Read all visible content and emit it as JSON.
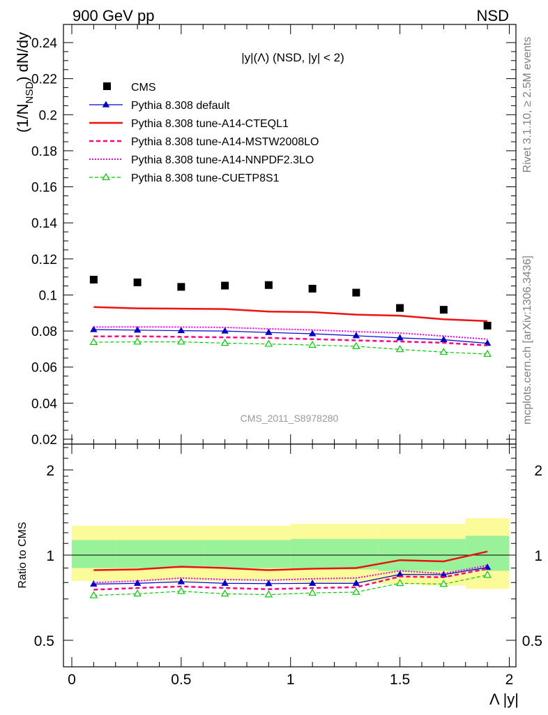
{
  "header": {
    "left": "900 GeV pp",
    "right": "NSD"
  },
  "side_text": {
    "rivet": "Rivet 3.1.10, ≥ 2.5M events",
    "mcplots": "mcplots.cern.ch [arXiv:1306.3436]"
  },
  "chart_data": [
    {
      "type": "scatter",
      "title": "|y|(Λ) (NSD, |y| < 2)",
      "ylabel": "(1/N_NSD) dN/dy",
      "ylabel_main": "(1/N",
      "ylabel_sub": "NSD",
      "ylabel_tail": ") dN/dy",
      "xlabel": "",
      "watermark": "CMS_2011_S8978280",
      "xlim": [
        -0.1,
        2.05
      ],
      "ylim": [
        0.02,
        0.25
      ],
      "yticks": [
        0.02,
        0.04,
        0.06,
        0.08,
        0.1,
        0.12,
        0.14,
        0.16,
        0.18,
        0.2,
        0.22,
        0.24
      ],
      "ytick_labels": [
        "0.02",
        "0.04",
        "0.06",
        "0.08",
        "0.1",
        "0.12",
        "0.14",
        "0.16",
        "0.18",
        "0.2",
        "0.22",
        "0.24"
      ],
      "legend_position": "top-left",
      "x": [
        0.1,
        0.3,
        0.5,
        0.7,
        0.9,
        1.1,
        1.3,
        1.5,
        1.7,
        1.9
      ],
      "series": [
        {
          "name": "CMS",
          "color": "#000000",
          "style": "marker-square",
          "values": [
            0.1085,
            0.107,
            0.1045,
            0.1052,
            0.1055,
            0.1035,
            0.1013,
            0.0928,
            0.0918,
            0.083
          ]
        },
        {
          "name": "Pythia 8.308 default",
          "color": "#0000cc",
          "style": "line-triangle",
          "values": [
            0.0808,
            0.0805,
            0.0802,
            0.08,
            0.0792,
            0.0785,
            0.0774,
            0.0762,
            0.0752,
            0.0732
          ]
        },
        {
          "name": "Pythia 8.308 tune-A14-CTEQL1",
          "color": "#ee1111",
          "style": "solid-thick",
          "values": [
            0.0933,
            0.0926,
            0.0924,
            0.0922,
            0.0908,
            0.0905,
            0.0891,
            0.0885,
            0.0865,
            0.0855
          ]
        },
        {
          "name": "Pythia 8.308 tune-A14-MSTW2008LO",
          "color": "#ff0088",
          "style": "dashed-thick",
          "values": [
            0.077,
            0.0771,
            0.0768,
            0.0765,
            0.0762,
            0.0755,
            0.0748,
            0.0742,
            0.0735,
            0.072
          ]
        },
        {
          "name": "Pythia 8.308 tune-A14-NNPDF2.3LO",
          "color": "#ee00ee",
          "style": "dotted",
          "values": [
            0.0822,
            0.0823,
            0.0822,
            0.082,
            0.0812,
            0.0806,
            0.0797,
            0.0789,
            0.0772,
            0.0755
          ]
        },
        {
          "name": "Pythia 8.308 tune-CUETP8S1",
          "color": "#00cc00",
          "style": "dashed-open-triangle",
          "values": [
            0.0738,
            0.074,
            0.074,
            0.0733,
            0.0728,
            0.0722,
            0.0715,
            0.0698,
            0.0683,
            0.0672
          ]
        }
      ]
    },
    {
      "type": "line",
      "ylabel": "Ratio to CMS",
      "xlabel": "Λ |y|",
      "scale": "log",
      "ylim": [
        0.4,
        2.5
      ],
      "yticks": [
        0.5,
        1,
        2
      ],
      "ytick_labels": [
        "0.5",
        "1",
        "2"
      ],
      "xticks": [
        0,
        0.5,
        1,
        1.5,
        2
      ],
      "xtick_labels": [
        "0",
        "0.5",
        "1",
        "1.5",
        "2"
      ],
      "x": [
        0.1,
        0.3,
        0.5,
        0.7,
        0.9,
        1.1,
        1.3,
        1.5,
        1.7,
        1.9
      ],
      "bands": {
        "inner_color": "#99f299",
        "outer_color": "#fbfb99",
        "inner_lower": [
          0.9,
          0.9,
          0.9,
          0.9,
          0.9,
          0.89,
          0.89,
          0.88,
          0.88,
          0.88
        ],
        "inner_upper": [
          1.13,
          1.13,
          1.13,
          1.13,
          1.13,
          1.14,
          1.14,
          1.14,
          1.14,
          1.17
        ],
        "outer_lower": [
          0.81,
          0.81,
          0.81,
          0.81,
          0.81,
          0.8,
          0.8,
          0.79,
          0.78,
          0.76
        ],
        "outer_upper": [
          1.27,
          1.27,
          1.27,
          1.27,
          1.27,
          1.29,
          1.29,
          1.29,
          1.29,
          1.35
        ]
      },
      "series": [
        {
          "name": "Pythia 8.308 default",
          "color": "#0000cc",
          "style": "line-triangle",
          "values": [
            0.79,
            0.795,
            0.805,
            0.795,
            0.793,
            0.795,
            0.795,
            0.855,
            0.853,
            0.905
          ]
        },
        {
          "name": "Pythia 8.308 tune-A14-CTEQL1",
          "color": "#ee1111",
          "style": "solid-thick",
          "values": [
            0.885,
            0.89,
            0.91,
            0.9,
            0.885,
            0.895,
            0.9,
            0.96,
            0.95,
            1.03
          ]
        },
        {
          "name": "Pythia 8.308 tune-A14-MSTW2008LO",
          "color": "#ff0088",
          "style": "dashed-thick",
          "values": [
            0.755,
            0.765,
            0.775,
            0.765,
            0.758,
            0.765,
            0.77,
            0.84,
            0.835,
            0.895
          ]
        },
        {
          "name": "Pythia 8.308 tune-A14-NNPDF2.3LO",
          "color": "#ee00ee",
          "style": "dotted",
          "values": [
            0.8,
            0.81,
            0.83,
            0.82,
            0.815,
            0.825,
            0.83,
            0.88,
            0.86,
            0.92
          ]
        },
        {
          "name": "Pythia 8.308 tune-CUETP8S1",
          "color": "#00cc00",
          "style": "dashed-open-triangle",
          "values": [
            0.72,
            0.73,
            0.745,
            0.73,
            0.725,
            0.735,
            0.74,
            0.795,
            0.79,
            0.85
          ]
        }
      ]
    }
  ]
}
